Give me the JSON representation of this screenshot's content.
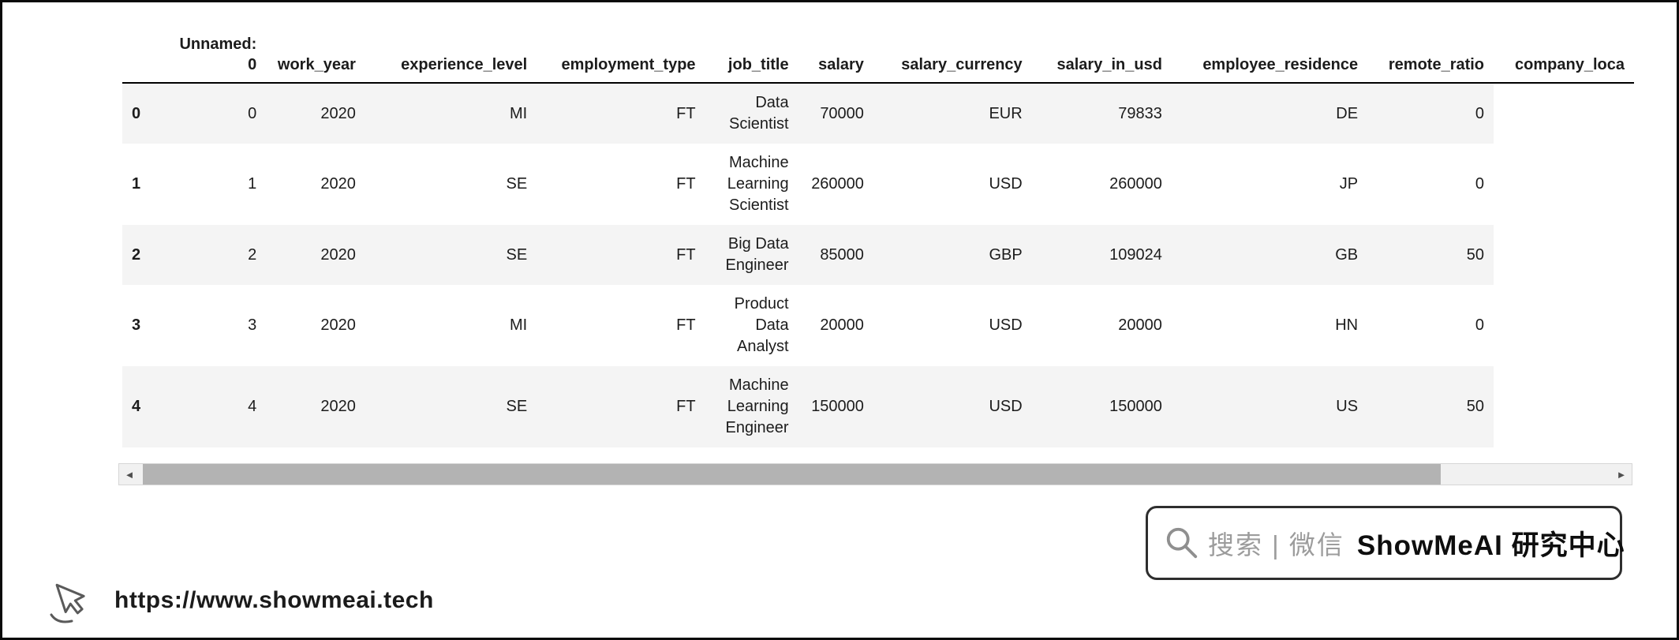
{
  "table": {
    "columns": [
      "Unnamed: 0",
      "work_year",
      "experience_level",
      "employment_type",
      "job_title",
      "salary",
      "salary_currency",
      "salary_in_usd",
      "employee_residence",
      "remote_ratio",
      "company_loca"
    ],
    "index": [
      "0",
      "1",
      "2",
      "3",
      "4"
    ],
    "rows": [
      [
        "0",
        "2020",
        "MI",
        "FT",
        "Data Scientist",
        "70000",
        "EUR",
        "79833",
        "DE",
        "0"
      ],
      [
        "1",
        "2020",
        "SE",
        "FT",
        "Machine Learning Scientist",
        "260000",
        "USD",
        "260000",
        "JP",
        "0"
      ],
      [
        "2",
        "2020",
        "SE",
        "FT",
        "Big Data Engineer",
        "85000",
        "GBP",
        "109024",
        "GB",
        "50"
      ],
      [
        "3",
        "2020",
        "MI",
        "FT",
        "Product Data Analyst",
        "20000",
        "USD",
        "20000",
        "HN",
        "0"
      ],
      [
        "4",
        "2020",
        "SE",
        "FT",
        "Machine Learning Engineer",
        "150000",
        "USD",
        "150000",
        "US",
        "50"
      ]
    ]
  },
  "scrollbar": {
    "left_arrow": "◄",
    "right_arrow": "►"
  },
  "watermark": {
    "search_label": "搜索 | 微信",
    "brand": "ShowMeAI 研究中心",
    "border_color": "#2e2e2e",
    "search_text_color": "#9c9c9c"
  },
  "footer": {
    "url": "https://www.showmeai.tech"
  },
  "colors": {
    "row_stripe": "#f4f4f4",
    "scrollbar_thumb": "#b3b3b3",
    "header_rule": "#000000"
  }
}
